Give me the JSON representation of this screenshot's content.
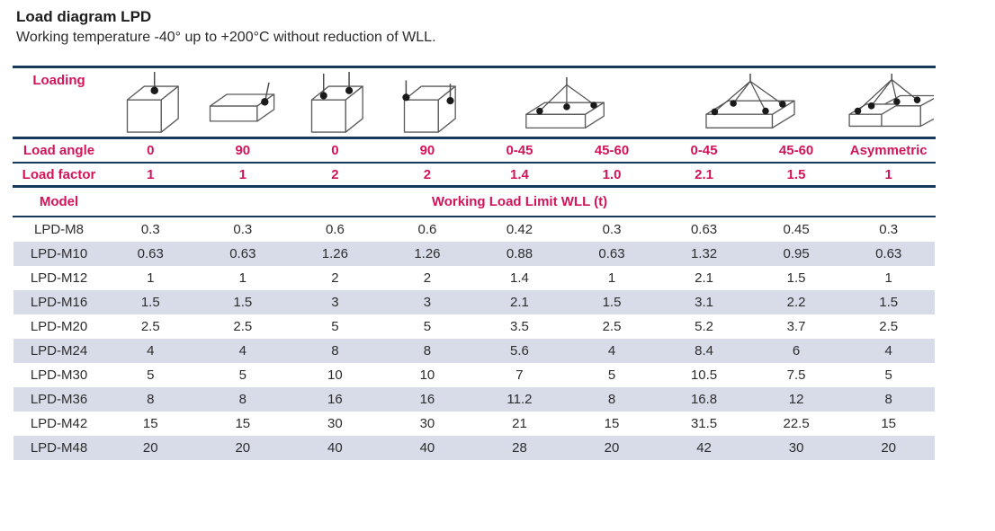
{
  "page": {
    "title": "Load diagram LPD",
    "subtitle": "Working temperature -40° up to +200°C without reduction of WLL."
  },
  "colors": {
    "accent_pink": "#d2145a",
    "rule_navy": "#17395c",
    "row_alt_background": "#d8dce9"
  },
  "table": {
    "loading_label": "Loading",
    "load_angle_label": "Load angle",
    "load_factor_label": "Load factor",
    "model_label": "Model",
    "wll_header": "Working Load Limit WLL (t)",
    "loading_icons": [
      "cube-single-top-lift-icon",
      "flat-box-side-lift-icon",
      "cube-two-top-lift-icon",
      "cube-two-side-lift-icon",
      "two-leg-sling-box-icon",
      "four-leg-sling-box-icon",
      "asymmetric-sling-box-icon"
    ],
    "load_angles": [
      "0",
      "90",
      "0",
      "90",
      "0-45",
      "45-60",
      "0-45",
      "45-60",
      "Asymmetric"
    ],
    "load_factors": [
      "1",
      "1",
      "2",
      "2",
      "1.4",
      "1.0",
      "2.1",
      "1.5",
      "1"
    ],
    "rows": [
      {
        "model": "LPD-M8",
        "values": [
          "0.3",
          "0.3",
          "0.6",
          "0.6",
          "0.42",
          "0.3",
          "0.63",
          "0.45",
          "0.3"
        ]
      },
      {
        "model": "LPD-M10",
        "values": [
          "0.63",
          "0.63",
          "1.26",
          "1.26",
          "0.88",
          "0.63",
          "1.32",
          "0.95",
          "0.63"
        ]
      },
      {
        "model": "LPD-M12",
        "values": [
          "1",
          "1",
          "2",
          "2",
          "1.4",
          "1",
          "2.1",
          "1.5",
          "1"
        ]
      },
      {
        "model": "LPD-M16",
        "values": [
          "1.5",
          "1.5",
          "3",
          "3",
          "2.1",
          "1.5",
          "3.1",
          "2.2",
          "1.5"
        ]
      },
      {
        "model": "LPD-M20",
        "values": [
          "2.5",
          "2.5",
          "5",
          "5",
          "3.5",
          "2.5",
          "5.2",
          "3.7",
          "2.5"
        ]
      },
      {
        "model": "LPD-M24",
        "values": [
          "4",
          "4",
          "8",
          "8",
          "5.6",
          "4",
          "8.4",
          "6",
          "4"
        ]
      },
      {
        "model": "LPD-M30",
        "values": [
          "5",
          "5",
          "10",
          "10",
          "7",
          "5",
          "10.5",
          "7.5",
          "5"
        ]
      },
      {
        "model": "LPD-M36",
        "values": [
          "8",
          "8",
          "16",
          "16",
          "11.2",
          "8",
          "16.8",
          "12",
          "8"
        ]
      },
      {
        "model": "LPD-M42",
        "values": [
          "15",
          "15",
          "30",
          "30",
          "21",
          "15",
          "31.5",
          "22.5",
          "15"
        ]
      },
      {
        "model": "LPD-M48",
        "values": [
          "20",
          "20",
          "40",
          "40",
          "28",
          "20",
          "42",
          "30",
          "20"
        ]
      }
    ]
  }
}
